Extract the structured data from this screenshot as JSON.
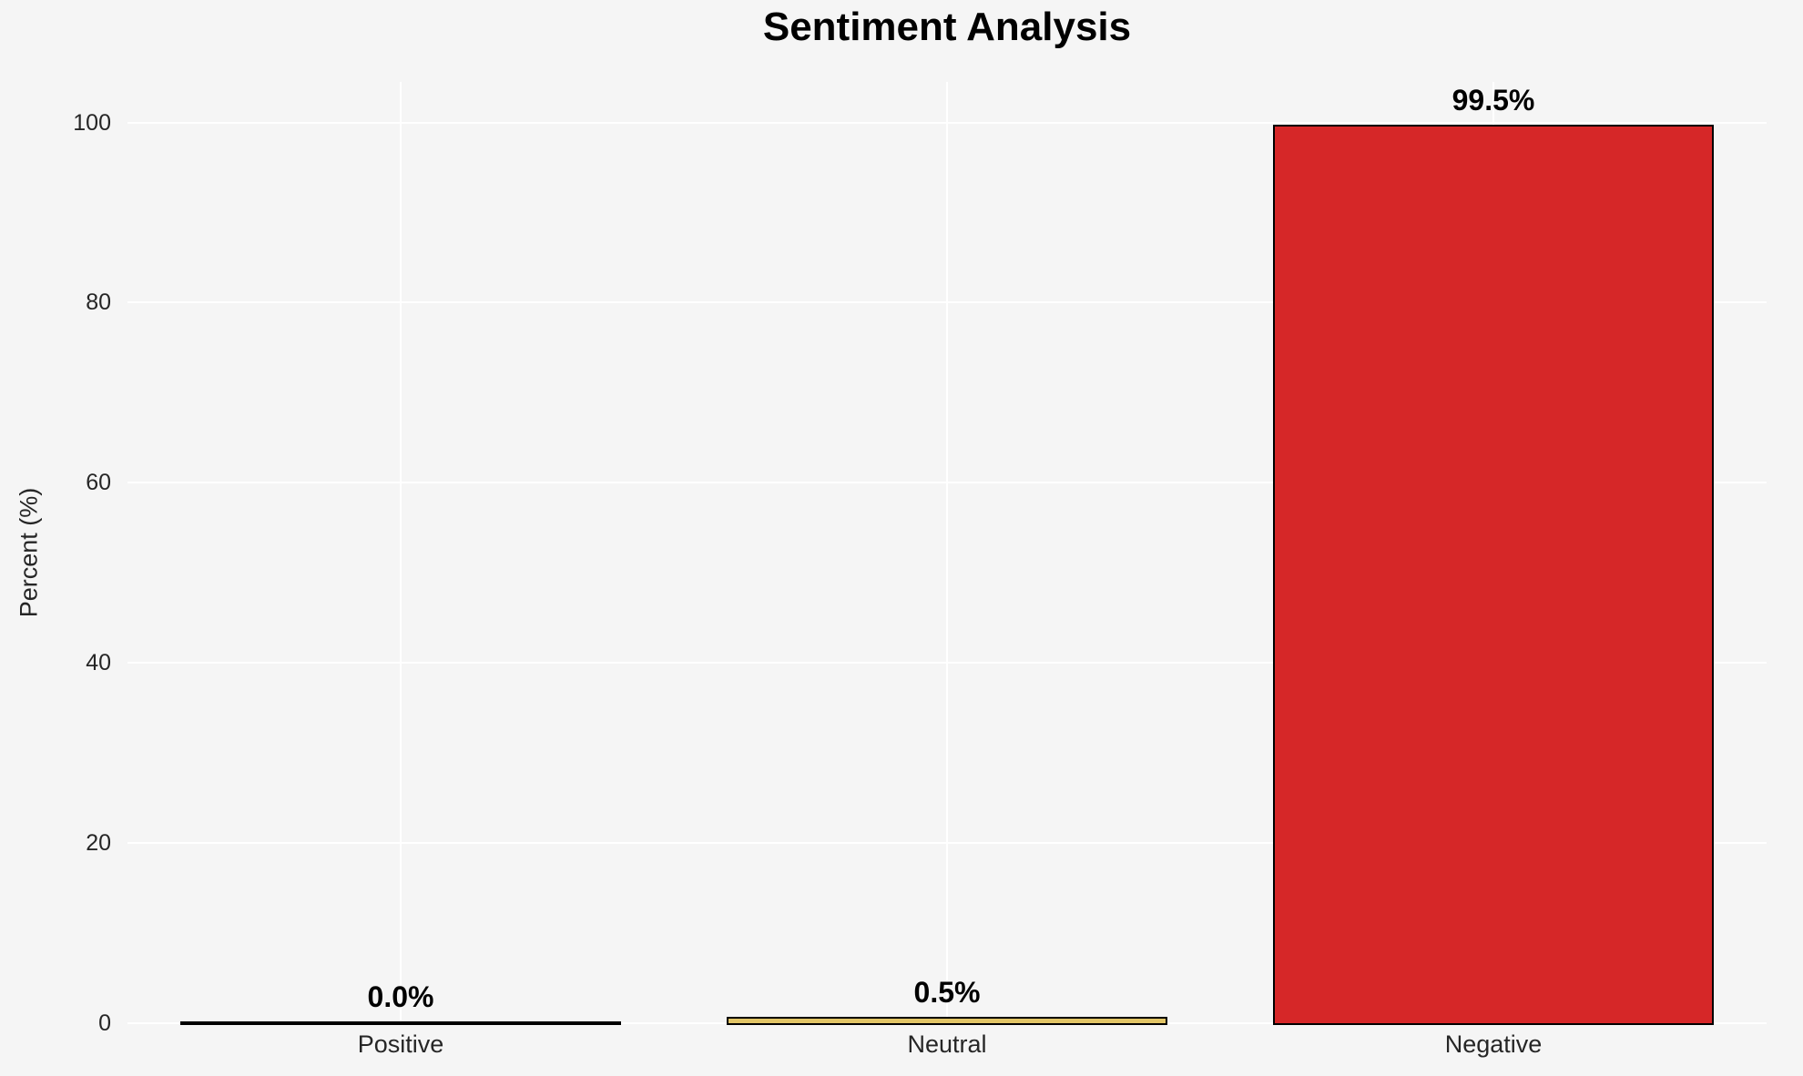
{
  "chart_data": {
    "type": "bar",
    "title": "Sentiment Analysis",
    "xlabel": "",
    "ylabel": "Percent (%)",
    "categories": [
      "Positive",
      "Neutral",
      "Negative"
    ],
    "values": [
      0.0,
      0.5,
      99.5
    ],
    "value_labels": [
      "0.0%",
      "0.5%",
      "99.5%"
    ],
    "ytick_labels": [
      "0",
      "20",
      "40",
      "60",
      "80",
      "100"
    ],
    "yticks": [
      0,
      20,
      40,
      60,
      80,
      100
    ],
    "ylim": [
      0,
      104.5
    ],
    "grid": true,
    "legend": false,
    "bar_width_fraction": 0.8,
    "colors": {
      "background": "#f5f5f5",
      "gridline": "#ffffff",
      "bar_fills": [
        "#2d2d2d",
        "#e2c566",
        "#d62728"
      ],
      "bar_edge": "#000000",
      "tick_text": "#262626",
      "title_text": "#000000",
      "value_label_text": "#000000"
    }
  }
}
